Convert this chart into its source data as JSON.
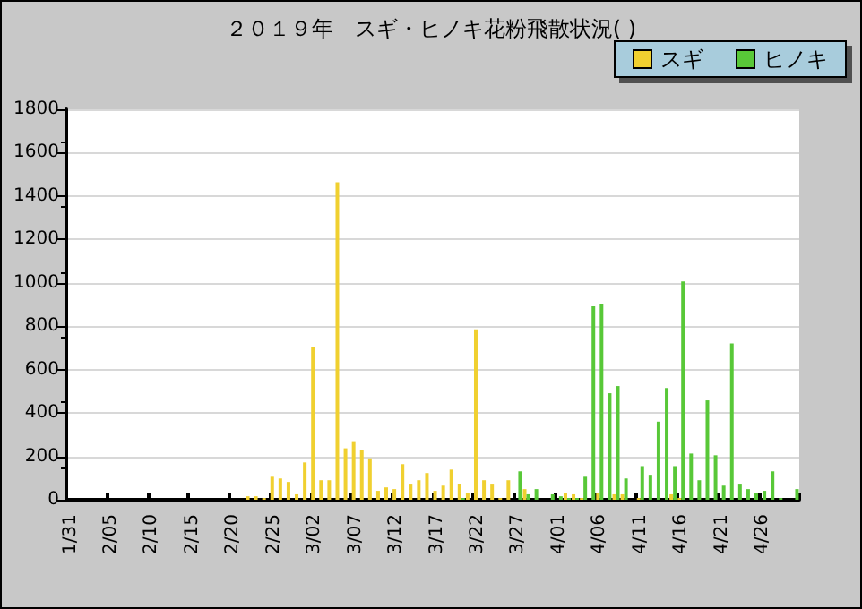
{
  "chart_data": {
    "type": "bar",
    "title": "２０１９年　スギ・ヒノキ花粉飛散状況( )",
    "categories": [
      "1/31",
      null,
      null,
      null,
      null,
      "2/05",
      null,
      null,
      null,
      null,
      "2/10",
      null,
      null,
      null,
      null,
      "2/15",
      null,
      null,
      null,
      null,
      "2/20",
      null,
      null,
      null,
      null,
      "2/25",
      null,
      null,
      null,
      null,
      "3/02",
      null,
      null,
      null,
      null,
      "3/07",
      null,
      null,
      null,
      null,
      "3/12",
      null,
      null,
      null,
      null,
      "3/17",
      null,
      null,
      null,
      null,
      "3/22",
      null,
      null,
      null,
      null,
      "3/27",
      null,
      null,
      null,
      null,
      "4/01",
      null,
      null,
      null,
      null,
      "4/06",
      null,
      null,
      null,
      null,
      "4/11",
      null,
      null,
      null,
      null,
      "4/16",
      null,
      null,
      null,
      null,
      "4/21",
      null,
      null,
      null,
      null,
      "4/26",
      null,
      null,
      null,
      null
    ],
    "series": [
      {
        "name": "スギ",
        "color": "#f0d030",
        "values": [
          0,
          0,
          0,
          0,
          0,
          0,
          0,
          0,
          0,
          0,
          0,
          0,
          0,
          0,
          0,
          0,
          0,
          0,
          0,
          0,
          0,
          0,
          16,
          16,
          8,
          106,
          98,
          82,
          25,
          172,
          704,
          90,
          90,
          1464,
          237,
          270,
          229,
          191,
          41,
          57,
          49,
          164,
          74,
          90,
          123,
          41,
          65,
          139,
          74,
          33,
          785,
          90,
          74,
          8,
          90,
          0,
          49,
          0,
          0,
          0,
          0,
          33,
          25,
          8,
          0,
          33,
          0,
          25,
          25,
          0,
          8,
          0,
          0,
          0,
          25,
          8,
          0,
          0,
          0,
          0,
          0,
          0,
          0,
          0,
          0,
          0,
          0,
          0,
          0,
          0
        ]
      },
      {
        "name": "ヒノキ",
        "color": "#58c838",
        "values": [
          0,
          0,
          0,
          0,
          0,
          0,
          0,
          0,
          0,
          0,
          0,
          0,
          0,
          0,
          0,
          0,
          0,
          0,
          0,
          0,
          0,
          0,
          0,
          0,
          0,
          0,
          0,
          0,
          0,
          0,
          0,
          0,
          0,
          0,
          0,
          0,
          0,
          0,
          0,
          0,
          0,
          0,
          0,
          0,
          0,
          0,
          0,
          0,
          8,
          0,
          0,
          0,
          0,
          0,
          0,
          131,
          25,
          49,
          0,
          25,
          16,
          8,
          8,
          106,
          892,
          900,
          491,
          524,
          98,
          0,
          155,
          115,
          360,
          515,
          155,
          1006,
          213,
          90,
          458,
          205,
          65,
          720,
          74,
          49,
          33,
          41,
          131,
          8,
          0,
          49
        ]
      }
    ],
    "ylim": [
      0,
      1800
    ],
    "yticks": [
      0,
      200,
      400,
      600,
      800,
      1000,
      1200,
      1400,
      1600,
      1800
    ],
    "grid": "y",
    "legend": "top right"
  }
}
